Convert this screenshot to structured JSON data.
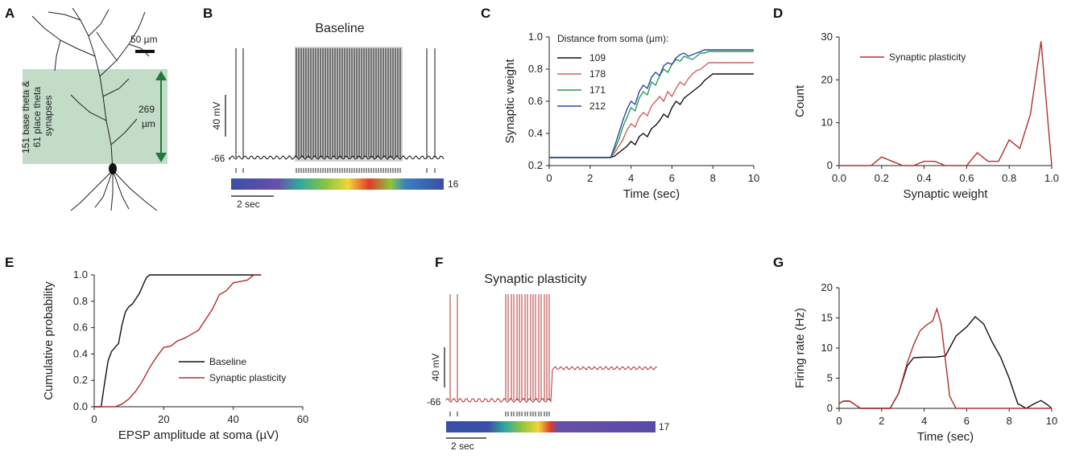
{
  "colors": {
    "baseline": "#111111",
    "plasticity": "#b03030",
    "green_region": "#8fbf9a",
    "green_arrow": "#1f7a3c",
    "green_text": "#1f6e3a",
    "c_109": "#111111",
    "c_178": "#d06060",
    "c_171": "#2a9a5a",
    "c_212": "#2c4a9a"
  },
  "panels": {
    "A": {
      "label": "A",
      "scale_bar": "50 µm",
      "region_text": [
        "151 base theta &",
        "61 place theta",
        "synapses"
      ],
      "distance_value": "269",
      "distance_unit": "µm"
    },
    "B": {
      "label": "B",
      "title": "Baseline",
      "scale_mv": "40 mV",
      "baseline_mv": "-66",
      "time_scale": "2 sec",
      "color_max": "16"
    },
    "F": {
      "label": "F",
      "title": "Synaptic plasticity",
      "scale_mv": "40 mV",
      "baseline_mv": "-66",
      "time_scale": "2 sec",
      "color_max": "17"
    }
  },
  "chart_data": [
    {
      "id": "C",
      "panel_label": "C",
      "type": "line",
      "xlabel": "Time (sec)",
      "ylabel": "Synaptic weight",
      "xlim": [
        0,
        10
      ],
      "ylim": [
        0.2,
        1.0
      ],
      "xticks": [
        0,
        2,
        4,
        6,
        8,
        10
      ],
      "yticks": [
        0.2,
        0.4,
        0.6,
        0.8,
        1.0
      ],
      "legend_title": "Distance from soma (µm):",
      "series": [
        {
          "name": "109",
          "color_key": "c_109",
          "x": [
            0,
            3.0,
            3.2,
            3.4,
            3.6,
            3.8,
            4.0,
            4.2,
            4.4,
            4.6,
            4.8,
            5.0,
            5.2,
            5.4,
            5.6,
            5.8,
            6.0,
            6.2,
            6.4,
            6.6,
            6.8,
            7.0,
            7.2,
            7.4,
            7.6,
            7.8,
            8.0,
            10
          ],
          "y": [
            0.25,
            0.25,
            0.26,
            0.28,
            0.3,
            0.32,
            0.35,
            0.33,
            0.38,
            0.4,
            0.38,
            0.43,
            0.45,
            0.48,
            0.52,
            0.5,
            0.56,
            0.6,
            0.58,
            0.62,
            0.64,
            0.66,
            0.68,
            0.7,
            0.73,
            0.75,
            0.77,
            0.77
          ]
        },
        {
          "name": "178",
          "color_key": "c_178",
          "x": [
            0,
            3.0,
            3.2,
            3.4,
            3.6,
            3.8,
            4.0,
            4.2,
            4.4,
            4.6,
            4.8,
            5.0,
            5.2,
            5.4,
            5.6,
            5.8,
            6.0,
            6.2,
            6.4,
            6.6,
            6.8,
            7.0,
            7.2,
            7.4,
            7.6,
            7.8,
            8.0,
            10
          ],
          "y": [
            0.25,
            0.25,
            0.28,
            0.32,
            0.36,
            0.42,
            0.46,
            0.44,
            0.5,
            0.53,
            0.51,
            0.57,
            0.6,
            0.63,
            0.6,
            0.66,
            0.63,
            0.68,
            0.72,
            0.7,
            0.74,
            0.77,
            0.79,
            0.8,
            0.82,
            0.84,
            0.84,
            0.84
          ]
        },
        {
          "name": "171",
          "color_key": "c_171",
          "x": [
            0,
            3.0,
            3.2,
            3.4,
            3.6,
            3.8,
            4.0,
            4.2,
            4.4,
            4.6,
            4.8,
            5.0,
            5.2,
            5.4,
            5.6,
            5.8,
            6.0,
            6.2,
            6.4,
            6.6,
            6.8,
            7.0,
            7.2,
            7.4,
            7.6,
            7.8,
            8.0,
            10
          ],
          "y": [
            0.25,
            0.25,
            0.3,
            0.36,
            0.44,
            0.5,
            0.56,
            0.54,
            0.62,
            0.66,
            0.64,
            0.72,
            0.7,
            0.76,
            0.8,
            0.78,
            0.83,
            0.86,
            0.85,
            0.88,
            0.87,
            0.86,
            0.88,
            0.9,
            0.9,
            0.91,
            0.91,
            0.91
          ]
        },
        {
          "name": "212",
          "color_key": "c_212",
          "x": [
            0,
            3.0,
            3.2,
            3.4,
            3.6,
            3.8,
            4.0,
            4.2,
            4.4,
            4.6,
            4.8,
            5.0,
            5.2,
            5.4,
            5.6,
            5.8,
            6.0,
            6.2,
            6.4,
            6.6,
            6.8,
            7.0,
            7.2,
            7.4,
            7.6,
            7.8,
            8.0,
            10
          ],
          "y": [
            0.25,
            0.25,
            0.32,
            0.4,
            0.48,
            0.55,
            0.6,
            0.58,
            0.66,
            0.7,
            0.68,
            0.75,
            0.78,
            0.76,
            0.82,
            0.84,
            0.83,
            0.87,
            0.89,
            0.9,
            0.88,
            0.89,
            0.9,
            0.91,
            0.92,
            0.92,
            0.92,
            0.92
          ]
        }
      ]
    },
    {
      "id": "D",
      "panel_label": "D",
      "type": "line",
      "xlabel": "Synaptic weight",
      "ylabel": "Count",
      "xlim": [
        0,
        1.0
      ],
      "ylim": [
        0,
        30
      ],
      "xticks": [
        0.0,
        0.2,
        0.4,
        0.6,
        0.8,
        1.0
      ],
      "yticks": [
        0,
        10,
        20,
        30
      ],
      "legend": "Synaptic plasticity",
      "series": [
        {
          "name": "Synaptic plasticity",
          "color_key": "plasticity",
          "x": [
            0.0,
            0.05,
            0.1,
            0.15,
            0.2,
            0.25,
            0.3,
            0.35,
            0.4,
            0.45,
            0.5,
            0.55,
            0.6,
            0.65,
            0.7,
            0.75,
            0.8,
            0.85,
            0.9,
            0.95,
            1.0
          ],
          "y": [
            0,
            0,
            0,
            0,
            2,
            1,
            0,
            0,
            1,
            1,
            0,
            0,
            0,
            3,
            1,
            1,
            6,
            4,
            12,
            29,
            0
          ]
        }
      ]
    },
    {
      "id": "E",
      "panel_label": "E",
      "type": "line",
      "xlabel": "EPSP amplitude at soma (µV)",
      "ylabel": "Cumulative probability",
      "xlim": [
        0,
        60
      ],
      "ylim": [
        0,
        1.0
      ],
      "xticks": [
        0,
        20,
        40,
        60
      ],
      "yticks": [
        0.0,
        0.2,
        0.4,
        0.6,
        0.8,
        1.0
      ],
      "series": [
        {
          "name": "Baseline",
          "color_key": "baseline",
          "x": [
            0,
            2,
            3,
            4,
            5,
            6,
            7,
            8,
            9,
            10,
            11,
            12,
            13,
            14,
            15,
            16,
            17,
            18,
            48
          ],
          "y": [
            0,
            0,
            0.18,
            0.35,
            0.42,
            0.45,
            0.48,
            0.62,
            0.72,
            0.76,
            0.78,
            0.82,
            0.86,
            0.92,
            0.98,
            1.0,
            1.0,
            1.0,
            1.0
          ]
        },
        {
          "name": "Synaptic plasticity",
          "color_key": "plasticity",
          "x": [
            0,
            6,
            8,
            10,
            12,
            14,
            16,
            18,
            20,
            22,
            24,
            26,
            28,
            30,
            32,
            34,
            36,
            38,
            40,
            42,
            44,
            46,
            48
          ],
          "y": [
            0,
            0,
            0.02,
            0.06,
            0.12,
            0.2,
            0.3,
            0.38,
            0.45,
            0.46,
            0.5,
            0.52,
            0.55,
            0.58,
            0.66,
            0.74,
            0.85,
            0.88,
            0.94,
            0.95,
            0.96,
            1.0,
            1.0
          ]
        }
      ]
    },
    {
      "id": "G",
      "panel_label": "G",
      "type": "line",
      "xlabel": "Time (sec)",
      "ylabel": "Firing rate (Hz)",
      "xlim": [
        0,
        10
      ],
      "ylim": [
        0,
        20
      ],
      "xticks": [
        0,
        2,
        4,
        6,
        8,
        10
      ],
      "yticks": [
        0,
        5,
        10,
        15,
        20
      ],
      "series": [
        {
          "name": "Baseline",
          "color_key": "baseline",
          "x": [
            0,
            0.2,
            0.5,
            0.8,
            1.0,
            2.4,
            2.8,
            3.2,
            3.5,
            4.0,
            4.5,
            5.0,
            5.5,
            6.0,
            6.4,
            6.8,
            7.2,
            7.6,
            8.0,
            8.4,
            8.8,
            9.2,
            9.5,
            9.8,
            10
          ],
          "y": [
            0.8,
            1.2,
            1.2,
            0.5,
            0,
            0,
            2.5,
            7.0,
            8.4,
            8.5,
            8.5,
            8.7,
            12.0,
            13.5,
            15.2,
            14.0,
            11.0,
            8.5,
            5.0,
            0.8,
            0,
            0.8,
            1.3,
            0.6,
            0
          ]
        },
        {
          "name": "Synaptic plasticity",
          "color_key": "plasticity",
          "x": [
            0,
            0.2,
            0.5,
            0.8,
            1.0,
            2.4,
            2.8,
            3.2,
            3.5,
            3.8,
            4.1,
            4.4,
            4.6,
            4.8,
            5.0,
            5.2,
            5.5,
            10
          ],
          "y": [
            0.8,
            1.2,
            1.2,
            0.5,
            0,
            0,
            2.5,
            7.5,
            10.5,
            12.8,
            13.8,
            14.5,
            16.5,
            14.0,
            8.0,
            2.0,
            0,
            0
          ]
        }
      ]
    }
  ],
  "legend_E": [
    "Baseline",
    "Synaptic plasticity"
  ]
}
